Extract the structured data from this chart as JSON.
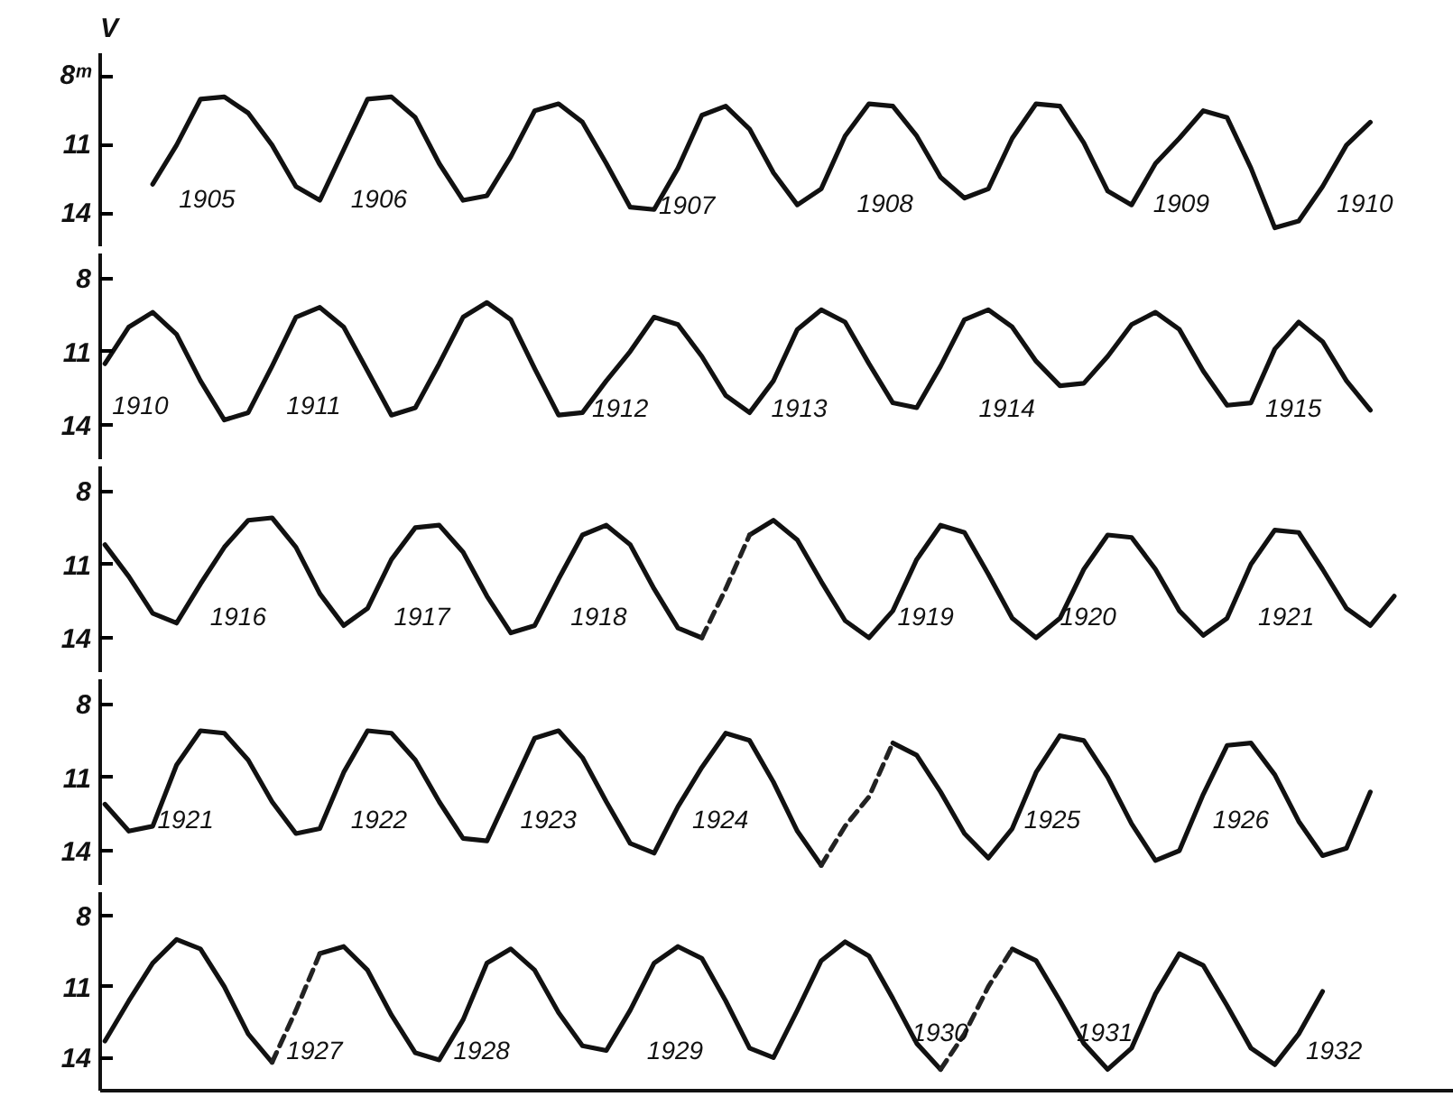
{
  "chart_data": [
    {
      "type": "line",
      "ylabel": "V",
      "annotations": [
        "1905",
        "1906",
        "1907",
        "1908",
        "1909",
        "1910"
      ],
      "categories": [
        null,
        null,
        null,
        null,
        null,
        null,
        null,
        null,
        null,
        null,
        null,
        null,
        null,
        null,
        null,
        null,
        null,
        null,
        null,
        null,
        null,
        null,
        null,
        null,
        null,
        null,
        null,
        null,
        null,
        null,
        null,
        null,
        null,
        null,
        null,
        null,
        null,
        null,
        null,
        null,
        null,
        null,
        null,
        null,
        null,
        null,
        null,
        null,
        null,
        null,
        null,
        null,
        null,
        null,
        null
      ],
      "ylim": [
        15.4,
        7.0
      ],
      "yticks": [
        {
          "value": 8,
          "label": "8ᵐ"
        },
        11,
        14
      ],
      "grid": false,
      "series": [
        {
          "color": "#111111",
          "line_style": "solid",
          "values": [
            null,
            null,
            12.7,
            11.0,
            9.0,
            8.9,
            9.6,
            11.0,
            12.8,
            13.4,
            11.2,
            9.0,
            8.9,
            9.8,
            11.8,
            13.4,
            13.2,
            11.5,
            9.5,
            9.2,
            10.0,
            11.8,
            13.7,
            13.8,
            12.0,
            9.7,
            9.3,
            10.3,
            12.2,
            13.6,
            12.9,
            10.6,
            9.2,
            9.3,
            10.6,
            12.4,
            13.3,
            12.9,
            10.7,
            9.2,
            9.3,
            10.9,
            13.0,
            13.6,
            11.8,
            10.7,
            9.5,
            9.8,
            12.0,
            14.6,
            14.3,
            12.8,
            11.0,
            10.0,
            null
          ]
        }
      ]
    },
    {
      "type": "line",
      "annotations": [
        "1910",
        "1911",
        "1912",
        "1913",
        "1914",
        "1915"
      ],
      "categories": [
        null,
        null,
        null,
        null,
        null,
        null,
        null,
        null,
        null,
        null,
        null,
        null,
        null,
        null,
        null,
        null,
        null,
        null,
        null,
        null,
        null,
        null,
        null,
        null,
        null,
        null,
        null,
        null,
        null,
        null,
        null,
        null,
        null,
        null,
        null,
        null,
        null,
        null,
        null,
        null,
        null,
        null,
        null,
        null,
        null,
        null,
        null,
        null,
        null,
        null,
        null,
        null,
        null,
        null,
        null
      ],
      "ylim": [
        15.4,
        7.0
      ],
      "yticks": [
        8,
        11,
        14
      ],
      "grid": false,
      "series": [
        {
          "color": "#111111",
          "line_style": "solid",
          "values": [
            11.5,
            10.0,
            9.4,
            10.3,
            12.2,
            13.8,
            13.5,
            11.6,
            9.6,
            9.2,
            10.0,
            11.8,
            13.6,
            13.3,
            11.5,
            9.6,
            9.0,
            9.7,
            11.7,
            13.6,
            13.5,
            12.2,
            11.0,
            9.6,
            9.9,
            11.2,
            12.8,
            13.5,
            12.2,
            10.1,
            9.3,
            9.8,
            11.5,
            13.1,
            13.3,
            11.6,
            9.7,
            9.3,
            10.0,
            11.4,
            12.4,
            12.3,
            11.2,
            9.9,
            9.4,
            10.1,
            11.8,
            13.2,
            13.1,
            10.9,
            9.8,
            10.6,
            12.2,
            13.4,
            null
          ]
        }
      ]
    },
    {
      "type": "line",
      "annotations": [
        "1916",
        "1917",
        "1918",
        "1919",
        "1920",
        "1921"
      ],
      "categories": [
        null,
        null,
        null,
        null,
        null,
        null,
        null,
        null,
        null,
        null,
        null,
        null,
        null,
        null,
        null,
        null,
        null,
        null,
        null,
        null,
        null,
        null,
        null,
        null,
        null,
        null,
        null,
        null,
        null,
        null,
        null,
        null,
        null,
        null,
        null,
        null,
        null,
        null,
        null,
        null,
        null,
        null,
        null,
        null,
        null,
        null,
        null,
        null,
        null,
        null,
        null,
        null,
        null,
        null,
        null
      ],
      "ylim": [
        15.4,
        7.0
      ],
      "yticks": [
        8,
        11,
        14
      ],
      "grid": false,
      "series": [
        {
          "color": "#111111",
          "line_style": "solid",
          "values": [
            10.2,
            11.5,
            13.0,
            13.4,
            11.8,
            10.3,
            9.2,
            9.1,
            10.3,
            12.2,
            13.5,
            12.8,
            10.8,
            9.5,
            9.4,
            10.5,
            12.3,
            13.8,
            13.5,
            11.6,
            9.8,
            9.4,
            10.2,
            12.0,
            13.6,
            14.0,
            null,
            9.8,
            9.2,
            10.0,
            11.7,
            13.3,
            14.0,
            12.9,
            10.8,
            9.4,
            9.7,
            11.4,
            13.2,
            14.0,
            13.2,
            11.2,
            9.8,
            9.9,
            11.2,
            12.9,
            13.9,
            13.2,
            11.0,
            9.6,
            9.7,
            11.2,
            12.8,
            13.5,
            12.3
          ]
        },
        {
          "color": "#222222",
          "line_style": "dashed",
          "values": [
            null,
            null,
            null,
            null,
            null,
            null,
            null,
            null,
            null,
            null,
            null,
            null,
            null,
            null,
            null,
            null,
            null,
            null,
            null,
            null,
            null,
            null,
            null,
            null,
            null,
            14.0,
            12.0,
            9.8,
            null,
            null,
            null,
            null,
            null,
            null,
            null,
            null,
            null,
            null,
            null,
            null,
            null,
            null,
            null,
            null,
            null,
            null,
            null,
            null,
            null,
            null,
            null,
            null,
            null,
            null,
            null
          ]
        }
      ]
    },
    {
      "type": "line",
      "annotations": [
        "1921",
        "1922",
        "1923",
        "1924",
        "1925",
        "1926"
      ],
      "categories": [
        null,
        null,
        null,
        null,
        null,
        null,
        null,
        null,
        null,
        null,
        null,
        null,
        null,
        null,
        null,
        null,
        null,
        null,
        null,
        null,
        null,
        null,
        null,
        null,
        null,
        null,
        null,
        null,
        null,
        null,
        null,
        null,
        null,
        null,
        null,
        null,
        null,
        null,
        null,
        null,
        null,
        null,
        null,
        null,
        null,
        null,
        null,
        null,
        null,
        null,
        null,
        null,
        null,
        null,
        null
      ],
      "ylim": [
        15.4,
        7.0
      ],
      "yticks": [
        8,
        11,
        14
      ],
      "grid": false,
      "series": [
        {
          "color": "#111111",
          "line_style": "solid",
          "values": [
            12.1,
            13.2,
            13.0,
            10.5,
            9.1,
            9.2,
            10.3,
            12.0,
            13.3,
            13.1,
            10.8,
            9.1,
            9.2,
            10.3,
            12.0,
            13.5,
            13.6,
            11.5,
            9.4,
            9.1,
            10.2,
            12.0,
            13.7,
            14.1,
            12.2,
            10.6,
            9.2,
            9.5,
            11.2,
            13.2,
            14.6,
            null,
            null,
            9.6,
            10.1,
            11.6,
            13.3,
            14.3,
            13.1,
            10.8,
            9.3,
            9.5,
            11.0,
            12.9,
            14.4,
            14.0,
            11.7,
            9.7,
            9.6,
            10.9,
            12.8,
            14.2,
            13.9,
            11.6,
            null
          ]
        },
        {
          "color": "#222222",
          "line_style": "dashed",
          "values": [
            null,
            null,
            null,
            null,
            null,
            null,
            null,
            null,
            null,
            null,
            null,
            null,
            null,
            null,
            null,
            null,
            null,
            null,
            null,
            null,
            null,
            null,
            null,
            null,
            null,
            null,
            null,
            null,
            null,
            null,
            14.6,
            13.0,
            11.8,
            9.6,
            null,
            null,
            null,
            null,
            null,
            null,
            null,
            null,
            null,
            null,
            null,
            null,
            null,
            null,
            null,
            null,
            null,
            null,
            null,
            null,
            null
          ]
        }
      ]
    },
    {
      "type": "line",
      "annotations": [
        "1927",
        "1928",
        "1929",
        "1930",
        "1931",
        "1932"
      ],
      "categories": [
        null,
        null,
        null,
        null,
        null,
        null,
        null,
        null,
        null,
        null,
        null,
        null,
        null,
        null,
        null,
        null,
        null,
        null,
        null,
        null,
        null,
        null,
        null,
        null,
        null,
        null,
        null,
        null,
        null,
        null,
        null,
        null,
        null,
        null,
        null,
        null,
        null,
        null,
        null,
        null,
        null,
        null,
        null,
        null,
        null,
        null,
        null,
        null,
        null,
        null,
        null,
        null,
        null,
        null,
        null
      ],
      "ylim": [
        15.4,
        7.0
      ],
      "yticks": [
        8,
        11,
        14
      ],
      "grid": false,
      "series": [
        {
          "color": "#111111",
          "line_style": "solid",
          "values": [
            13.3,
            11.6,
            10.0,
            9.0,
            9.4,
            11.0,
            13.0,
            14.2,
            null,
            9.6,
            9.3,
            10.3,
            12.2,
            13.8,
            14.1,
            12.4,
            10.0,
            9.4,
            10.3,
            12.1,
            13.5,
            13.7,
            12.0,
            10.0,
            9.3,
            9.8,
            11.6,
            13.6,
            14.0,
            12.0,
            9.9,
            9.1,
            9.7,
            11.5,
            13.4,
            14.5,
            null,
            null,
            9.4,
            9.9,
            11.6,
            13.4,
            14.5,
            13.6,
            11.3,
            9.6,
            10.1,
            11.8,
            13.6,
            14.3,
            13.0,
            11.2,
            null,
            null,
            null
          ]
        },
        {
          "color": "#222222",
          "line_style": "dashed",
          "values": [
            null,
            null,
            null,
            null,
            null,
            null,
            null,
            14.2,
            12.0,
            9.6,
            null,
            null,
            null,
            null,
            null,
            null,
            null,
            null,
            null,
            null,
            null,
            null,
            null,
            null,
            null,
            null,
            null,
            null,
            null,
            null,
            null,
            null,
            null,
            null,
            null,
            null,
            null,
            null,
            null,
            null,
            null,
            null,
            null,
            null,
            null,
            null,
            null,
            null,
            null,
            null,
            null,
            null,
            null,
            null,
            null
          ]
        },
        {
          "color": "#222222",
          "line_style": "dashed",
          "values": [
            null,
            null,
            null,
            null,
            null,
            null,
            null,
            null,
            null,
            null,
            null,
            null,
            null,
            null,
            null,
            null,
            null,
            null,
            null,
            null,
            null,
            null,
            null,
            null,
            null,
            null,
            null,
            null,
            null,
            null,
            null,
            null,
            null,
            null,
            null,
            14.5,
            13.0,
            11.0,
            9.4,
            null,
            null,
            null,
            null,
            null,
            null,
            null,
            null,
            null,
            null,
            null,
            null,
            null,
            null,
            null,
            null
          ]
        }
      ]
    }
  ]
}
